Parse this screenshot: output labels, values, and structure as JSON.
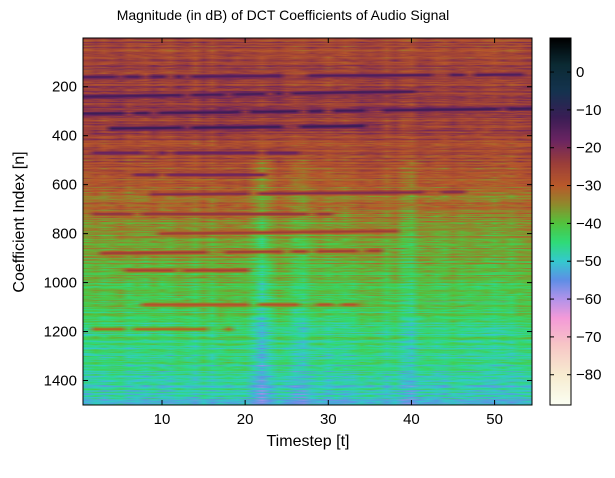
{
  "chart_data": {
    "type": "heatmap",
    "title": "Magnitude (in dB) of DCT Coefficients of Audio Signal",
    "xlabel": "Timestep [t]",
    "ylabel": "Coefficient Index [n]",
    "xlim": [
      0.5,
      54.5
    ],
    "ylim": [
      1,
      1500
    ],
    "y_direction": "reversed",
    "x_ticks": [
      10,
      20,
      30,
      40,
      50
    ],
    "y_ticks": [
      200,
      400,
      600,
      800,
      1000,
      1200,
      1400
    ],
    "colorbar": {
      "label": "",
      "range": [
        -88,
        9
      ],
      "ticks": [
        0,
        -10,
        -20,
        -30,
        -40,
        -50,
        -60,
        -70,
        -80
      ],
      "colormap": [
        {
          "value": 9,
          "color": "#000000"
        },
        {
          "value": 2,
          "color": "#0b2a33"
        },
        {
          "value": -5,
          "color": "#14334f"
        },
        {
          "value": -12,
          "color": "#3a1d55"
        },
        {
          "value": -18,
          "color": "#6a2462"
        },
        {
          "value": -24,
          "color": "#9a3d3a"
        },
        {
          "value": -30,
          "color": "#b9592a"
        },
        {
          "value": -35,
          "color": "#8f8a2c"
        },
        {
          "value": -40,
          "color": "#52c43d"
        },
        {
          "value": -45,
          "color": "#2fdb78"
        },
        {
          "value": -50,
          "color": "#34c9cf"
        },
        {
          "value": -55,
          "color": "#5f8ee6"
        },
        {
          "value": -60,
          "color": "#b293ea"
        },
        {
          "value": -65,
          "color": "#f49ad8"
        },
        {
          "value": -72,
          "color": "#f7c6c6"
        },
        {
          "value": -80,
          "color": "#f7ecd0"
        },
        {
          "value": -88,
          "color": "#fbfff3"
        }
      ]
    },
    "num_timesteps": 54,
    "num_coefficients": 1500,
    "background_gradient_db": [
      {
        "n": 1,
        "db": -26
      },
      {
        "n": 200,
        "db": -24
      },
      {
        "n": 400,
        "db": -25
      },
      {
        "n": 600,
        "db": -30
      },
      {
        "n": 800,
        "db": -35
      },
      {
        "n": 1000,
        "db": -40
      },
      {
        "n": 1200,
        "db": -44
      },
      {
        "n": 1400,
        "db": -48
      },
      {
        "n": 1500,
        "db": -50
      }
    ],
    "bright_columns": [
      {
        "t": 22,
        "db_offset": -7
      },
      {
        "t": 27,
        "db_offset": -4
      },
      {
        "t": 40,
        "db_offset": -3
      }
    ],
    "ridges": [
      {
        "n_start": 160,
        "n_end": 150,
        "t_start": 1,
        "t_end": 54,
        "db": -14
      },
      {
        "n_start": 240,
        "n_end": 220,
        "t_start": 1,
        "t_end": 40,
        "db": -13
      },
      {
        "n_start": 310,
        "n_end": 290,
        "t_start": 1,
        "t_end": 54,
        "db": -12
      },
      {
        "n_start": 370,
        "n_end": 360,
        "t_start": 4,
        "t_end": 36,
        "db": -11
      },
      {
        "n_start": 470,
        "n_end": 470,
        "t_start": 2,
        "t_end": 26,
        "db": -17
      },
      {
        "n_start": 560,
        "n_end": 560,
        "t_start": 6,
        "t_end": 22,
        "db": -18
      },
      {
        "n_start": 640,
        "n_end": 630,
        "t_start": 8,
        "t_end": 46,
        "db": -20
      },
      {
        "n_start": 720,
        "n_end": 720,
        "t_start": 2,
        "t_end": 30,
        "db": -22
      },
      {
        "n_start": 800,
        "n_end": 790,
        "t_start": 10,
        "t_end": 38,
        "db": -24
      },
      {
        "n_start": 880,
        "n_end": 870,
        "t_start": 3,
        "t_end": 36,
        "db": -24
      },
      {
        "n_start": 950,
        "n_end": 950,
        "t_start": 6,
        "t_end": 20,
        "db": -25
      },
      {
        "n_start": 1090,
        "n_end": 1090,
        "t_start": 8,
        "t_end": 34,
        "db": -28
      },
      {
        "n_start": 1190,
        "n_end": 1190,
        "t_start": 2,
        "t_end": 18,
        "db": -30
      }
    ]
  }
}
